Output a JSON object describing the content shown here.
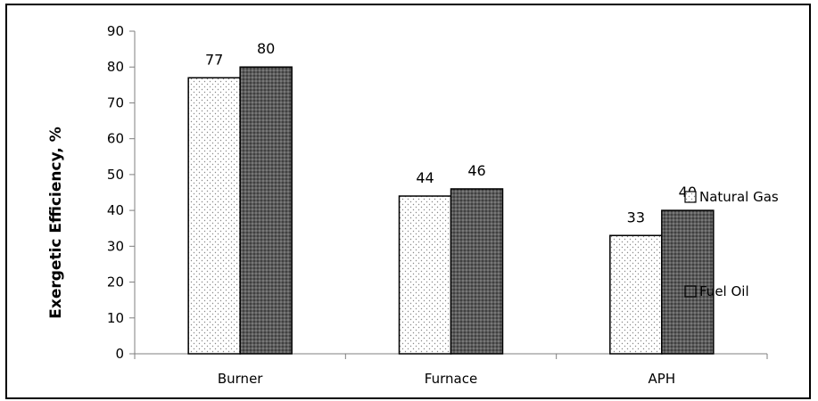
{
  "chart_data": {
    "type": "bar",
    "title": "",
    "xlabel": "",
    "ylabel": "Exergetic Efficiency, %",
    "ylim": [
      0,
      90
    ],
    "yticks": [
      0,
      10,
      20,
      30,
      40,
      50,
      60,
      70,
      80,
      90
    ],
    "categories": [
      "Burner",
      "Furnace",
      "APH"
    ],
    "series": [
      {
        "name": "Natural Gas",
        "values": [
          77,
          44,
          33
        ],
        "labels": [
          "77",
          "44",
          "33"
        ],
        "pattern": "dots-light"
      },
      {
        "name": "Fuel Oil",
        "values": [
          80,
          46,
          40
        ],
        "labels": [
          "80",
          "46",
          "40"
        ],
        "pattern": "dots-dark"
      }
    ],
    "legend_position": "right",
    "grid": false
  }
}
